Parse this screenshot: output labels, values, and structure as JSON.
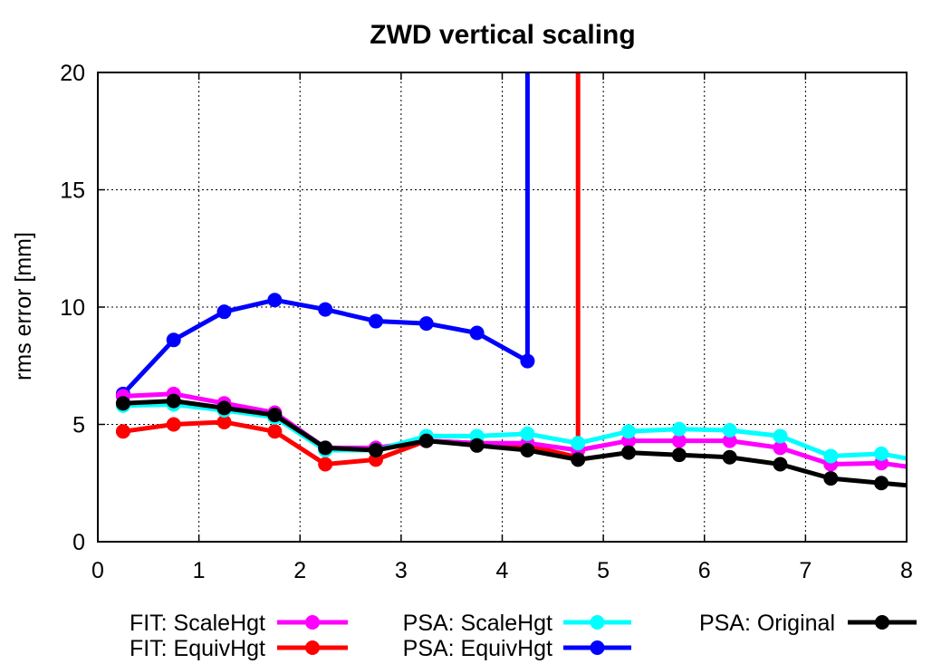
{
  "chart_data": {
    "type": "line",
    "title": "ZWD vertical scaling",
    "xlabel": "",
    "ylabel": "rms error [mm]",
    "xlim": [
      0,
      8
    ],
    "ylim": [
      0,
      20
    ],
    "xticks": [
      "0",
      "1",
      "2",
      "3",
      "4",
      "5",
      "6",
      "7",
      "8"
    ],
    "yticks": [
      "0",
      "5",
      "10",
      "15",
      "20"
    ],
    "grid": true,
    "legend_position": "bottom",
    "series": [
      {
        "name": "FIT: ScaleHgt",
        "color": "#ff00ff",
        "x": [
          0.25,
          0.75,
          1.25,
          1.75,
          2.25,
          2.75,
          3.25,
          3.75,
          4.25,
          4.75,
          5.25,
          5.75,
          6.25,
          6.75,
          7.25,
          7.75,
          8.0
        ],
        "y": [
          6.2,
          6.3,
          5.9,
          5.5,
          4.0,
          4.0,
          4.3,
          4.2,
          4.2,
          3.9,
          4.3,
          4.3,
          4.3,
          4.0,
          3.3,
          3.35,
          3.2
        ],
        "markers": [
          true,
          true,
          true,
          true,
          true,
          true,
          true,
          true,
          true,
          true,
          true,
          true,
          true,
          true,
          true,
          true,
          false
        ]
      },
      {
        "name": "FIT: EquivHgt",
        "color": "#ff0000",
        "x": [
          0.25,
          0.75,
          1.25,
          1.75,
          2.25,
          2.75,
          3.25,
          3.75,
          4.25,
          4.75,
          4.75
        ],
        "y": [
          4.7,
          5.0,
          5.1,
          4.7,
          3.3,
          3.5,
          4.3,
          4.2,
          4.1,
          3.6,
          20.0
        ],
        "markers": [
          true,
          true,
          true,
          true,
          true,
          true,
          true,
          true,
          true,
          false,
          false
        ]
      },
      {
        "name": "PSA: ScaleHgt",
        "color": "#00ffff",
        "x": [
          0.25,
          0.75,
          1.25,
          1.75,
          2.25,
          2.75,
          3.25,
          3.75,
          4.25,
          4.75,
          5.25,
          5.75,
          6.25,
          6.75,
          7.25,
          7.75,
          8.0
        ],
        "y": [
          5.8,
          5.85,
          5.6,
          5.3,
          3.9,
          3.9,
          4.5,
          4.5,
          4.6,
          4.2,
          4.7,
          4.8,
          4.75,
          4.5,
          3.65,
          3.75,
          3.55
        ],
        "markers": [
          true,
          true,
          true,
          true,
          true,
          true,
          true,
          true,
          true,
          true,
          true,
          true,
          true,
          true,
          true,
          true,
          false
        ]
      },
      {
        "name": "PSA: EquivHgt",
        "color": "#0000ff",
        "x": [
          0.25,
          0.75,
          1.25,
          1.75,
          2.25,
          2.75,
          3.25,
          3.75,
          4.25,
          4.25
        ],
        "y": [
          6.3,
          8.6,
          9.8,
          10.3,
          9.9,
          9.4,
          9.3,
          8.9,
          7.7,
          20.0
        ],
        "markers": [
          true,
          true,
          true,
          true,
          true,
          true,
          true,
          true,
          true,
          false
        ]
      },
      {
        "name": "PSA: Original",
        "color": "#000000",
        "x": [
          0.25,
          0.75,
          1.25,
          1.75,
          2.25,
          2.75,
          3.25,
          3.75,
          4.25,
          4.75,
          5.25,
          5.75,
          6.25,
          6.75,
          7.25,
          7.75,
          8.0
        ],
        "y": [
          5.9,
          6.0,
          5.7,
          5.4,
          4.0,
          3.9,
          4.3,
          4.1,
          3.9,
          3.5,
          3.8,
          3.7,
          3.6,
          3.3,
          2.7,
          2.5,
          2.4
        ],
        "markers": [
          true,
          true,
          true,
          true,
          true,
          true,
          true,
          true,
          true,
          true,
          true,
          true,
          true,
          true,
          true,
          true,
          false
        ]
      }
    ]
  }
}
